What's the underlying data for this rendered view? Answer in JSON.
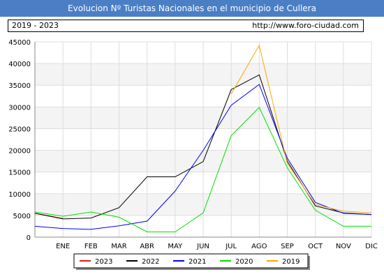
{
  "header": {
    "title": "Evolucion Nº Turistas Nacionales en el municipio de Cullera"
  },
  "info": {
    "range": "2019 - 2023",
    "url": "http://www.foro-ciudad.com"
  },
  "chart_data": {
    "type": "line",
    "categories": [
      "",
      "ENE",
      "FEB",
      "MAR",
      "ABR",
      "MAY",
      "JUN",
      "JUL",
      "AGO",
      "SEP",
      "OCT",
      "NOV",
      "DIC"
    ],
    "ylim": [
      0,
      45000
    ],
    "yticks": [
      0,
      5000,
      10000,
      15000,
      20000,
      25000,
      30000,
      35000,
      40000,
      45000
    ],
    "grid": true,
    "legend_position": "bottom",
    "series": [
      {
        "name": "2023",
        "color": "#e31a1c",
        "values": [
          5500,
          4300,
          null,
          null,
          null,
          null,
          null,
          null,
          null,
          null,
          null,
          null,
          null
        ]
      },
      {
        "name": "2022",
        "color": "#000000",
        "values": [
          5500,
          4200,
          4400,
          6800,
          13900,
          13900,
          17400,
          34000,
          37400,
          17500,
          7200,
          5600,
          5200
        ]
      },
      {
        "name": "2021",
        "color": "#0000ff",
        "values": [
          2500,
          2000,
          1800,
          2600,
          3700,
          10600,
          20000,
          30400,
          35200,
          18200,
          8000,
          5500,
          5200
        ]
      },
      {
        "name": "2020",
        "color": "#00e000",
        "values": [
          5800,
          4800,
          5800,
          4600,
          1200,
          1200,
          5600,
          23400,
          29900,
          16000,
          6200,
          2500,
          2500
        ]
      },
      {
        "name": "2019",
        "color": "#ffa500",
        "values": [
          null,
          null,
          null,
          null,
          null,
          null,
          null,
          33000,
          44200,
          17000,
          7500,
          6000,
          5600
        ]
      }
    ]
  }
}
